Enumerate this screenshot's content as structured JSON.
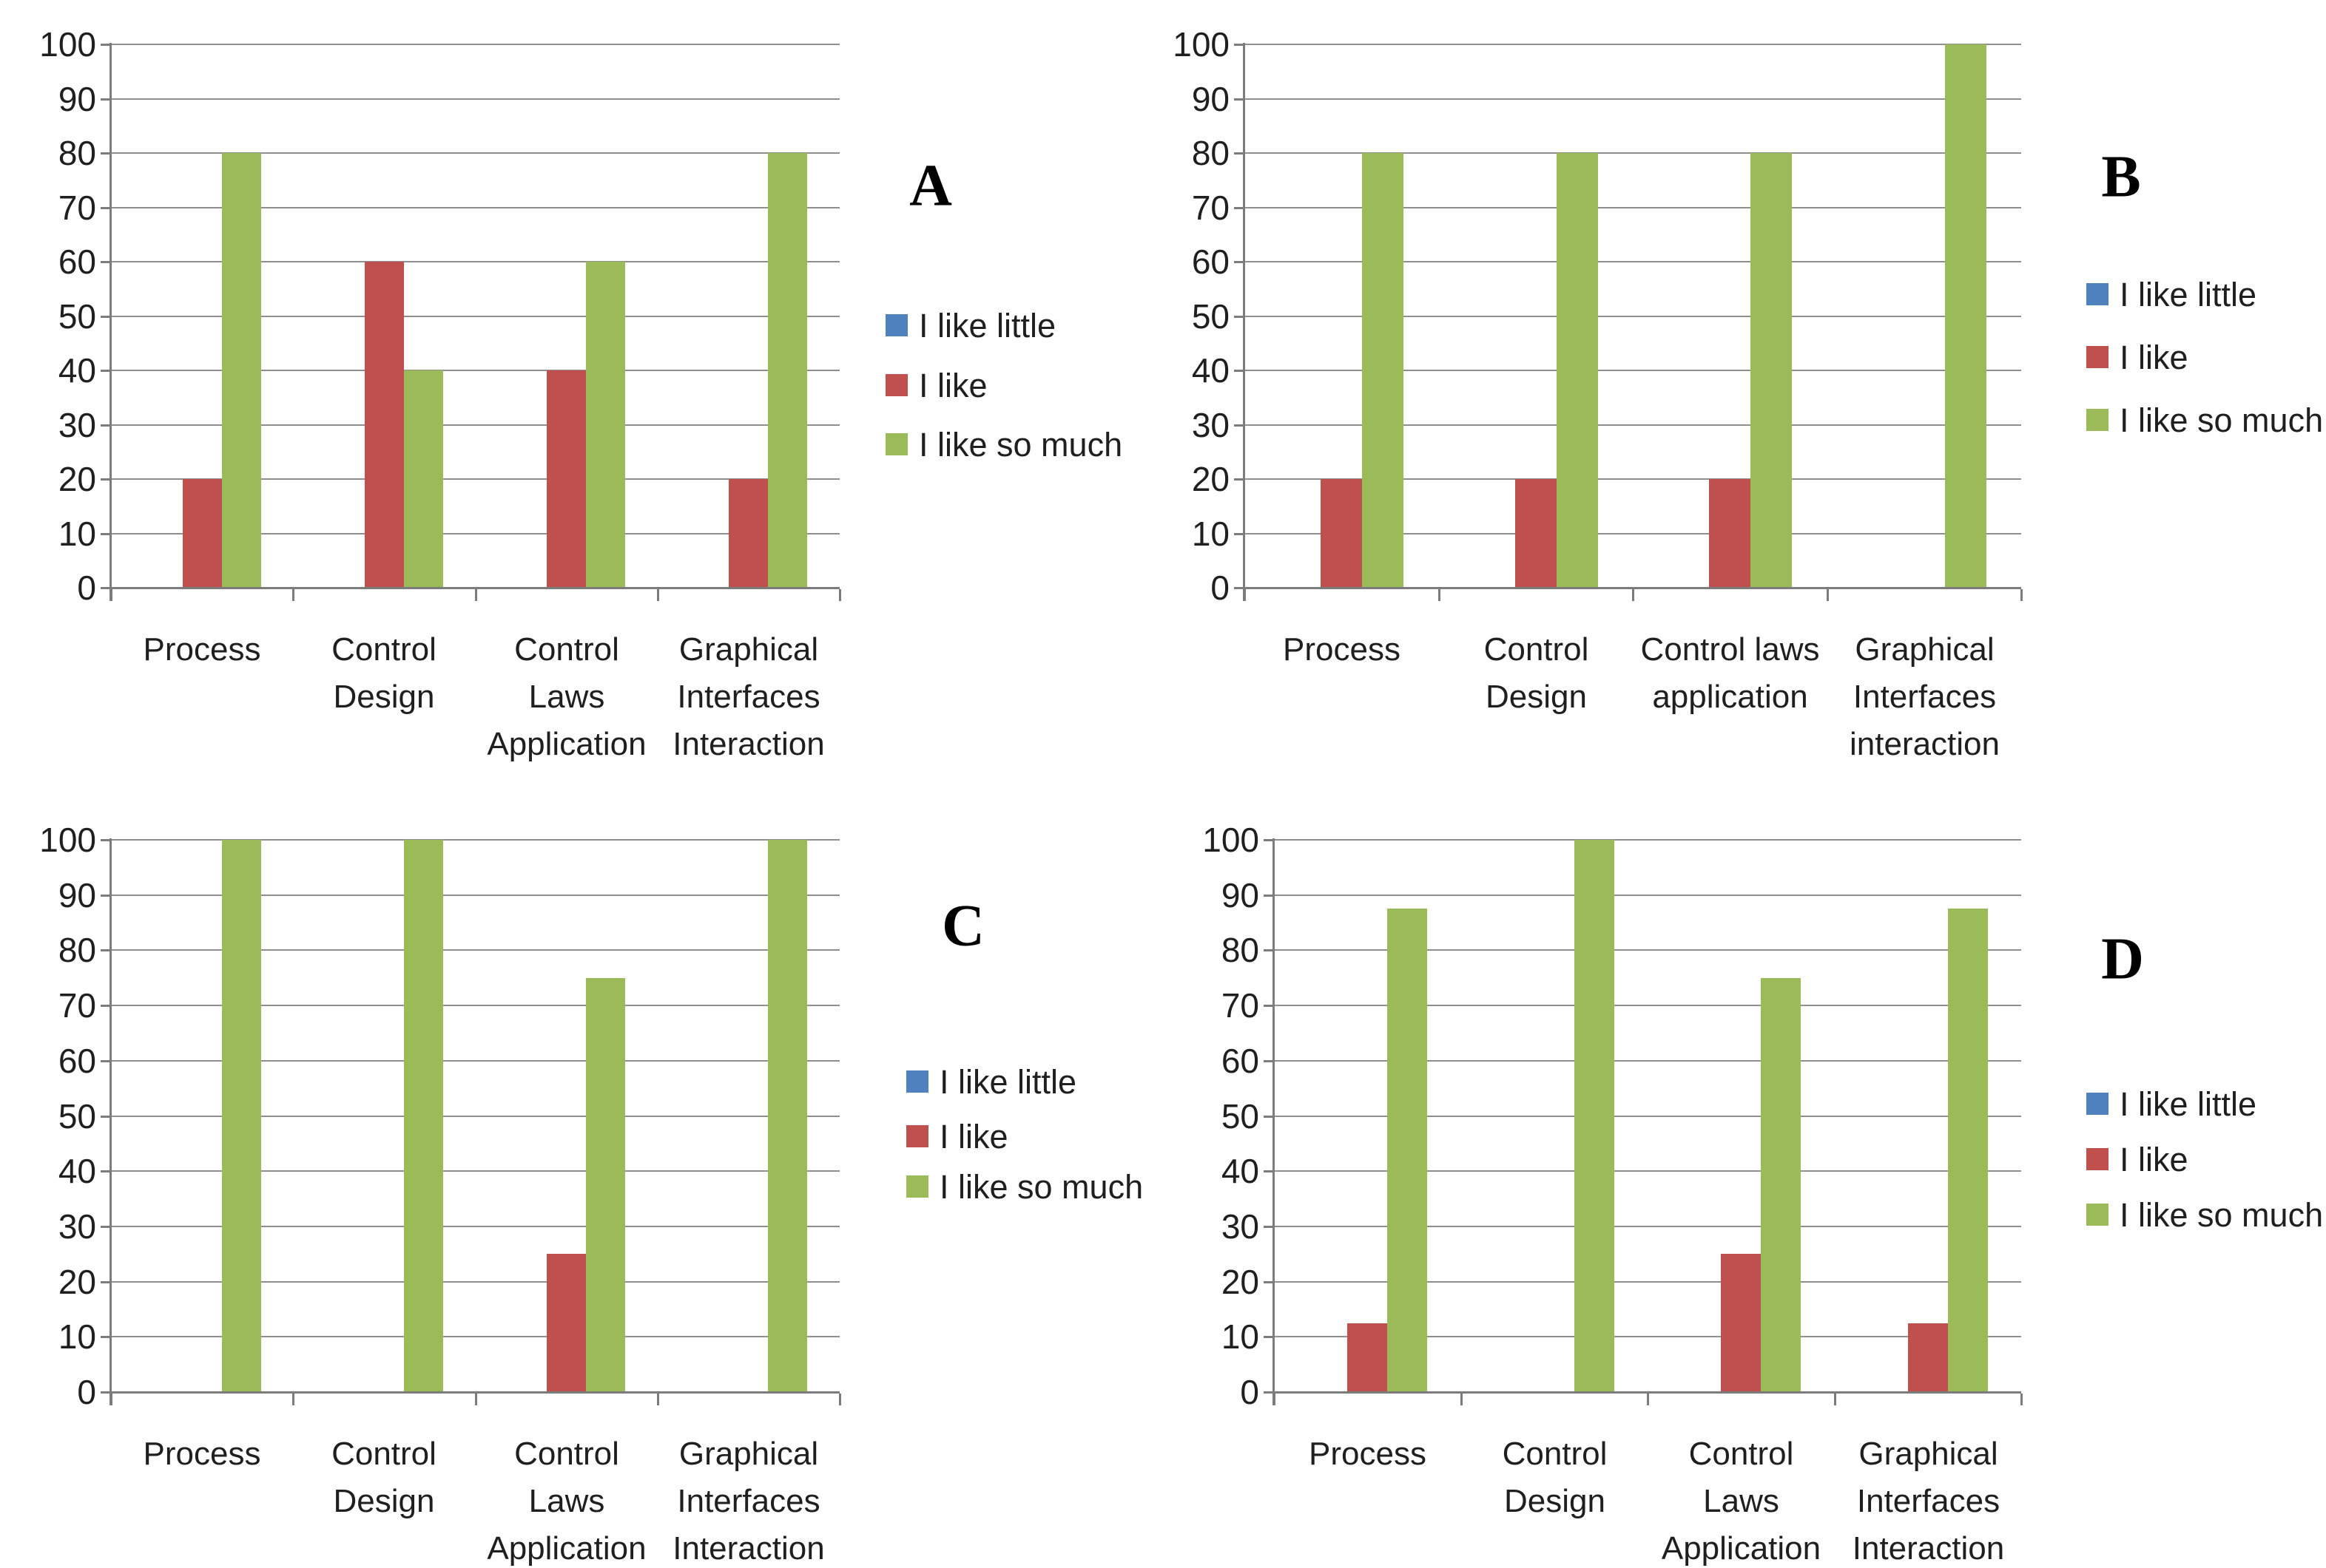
{
  "figure": {
    "description": "Four grouped bar chart panels (A, B, C, D) showing percentage of answers I like little / I like / I like so much for four course activities",
    "background": "#ffffff"
  },
  "colors": {
    "blue": "#4E81BD",
    "red": "#C0504D",
    "green": "#9BBB59",
    "grid": "#8f8f8f",
    "axis": "#7c7c7c",
    "text": "#1f1f1f"
  },
  "chart_data": [
    {
      "type": "bar",
      "panel_label": "A",
      "title": "",
      "xlabel": "",
      "ylabel": "",
      "ylim": [
        0,
        100
      ],
      "ytick_step": 10,
      "yticks": [
        "0",
        "10",
        "20",
        "30",
        "40",
        "50",
        "60",
        "70",
        "80",
        "90",
        "100"
      ],
      "grid": true,
      "legend_position": "right",
      "categories": [
        "Process",
        "Control Design",
        "Control Laws Application",
        "Graphical Interfaces Interaction"
      ],
      "category_lines": [
        [
          "Process"
        ],
        [
          "Control",
          "Design"
        ],
        [
          "Control",
          "Laws",
          "Application"
        ],
        [
          "Graphical",
          "Interfaces",
          "Interaction"
        ]
      ],
      "series": [
        {
          "name": "I like little",
          "color": "#4E81BD",
          "values": [
            0,
            0,
            0,
            0
          ]
        },
        {
          "name": "I like",
          "color": "#C0504D",
          "values": [
            20,
            60,
            40,
            20
          ]
        },
        {
          "name": "I like so much",
          "color": "#9BBB59",
          "values": [
            80,
            40,
            60,
            80
          ]
        }
      ]
    },
    {
      "type": "bar",
      "panel_label": "B",
      "title": "",
      "xlabel": "",
      "ylabel": "",
      "ylim": [
        0,
        100
      ],
      "ytick_step": 10,
      "yticks": [
        "0",
        "10",
        "20",
        "30",
        "40",
        "50",
        "60",
        "70",
        "80",
        "90",
        "100"
      ],
      "grid": true,
      "legend_position": "right",
      "categories": [
        "Process",
        "Control Design",
        "Control laws application",
        "Graphical Interfaces interaction"
      ],
      "category_lines": [
        [
          "Process"
        ],
        [
          "Control",
          "Design"
        ],
        [
          "Control laws",
          "application"
        ],
        [
          "Graphical",
          "Interfaces",
          "interaction"
        ]
      ],
      "series": [
        {
          "name": "I like little",
          "color": "#4E81BD",
          "values": [
            0,
            0,
            0,
            0
          ]
        },
        {
          "name": "I like",
          "color": "#C0504D",
          "values": [
            20,
            20,
            20,
            0
          ]
        },
        {
          "name": "I like so much",
          "color": "#9BBB59",
          "values": [
            80,
            80,
            80,
            100
          ]
        }
      ]
    },
    {
      "type": "bar",
      "panel_label": "C",
      "title": "",
      "xlabel": "",
      "ylabel": "",
      "ylim": [
        0,
        100
      ],
      "ytick_step": 10,
      "yticks": [
        "0",
        "10",
        "20",
        "30",
        "40",
        "50",
        "60",
        "70",
        "80",
        "90",
        "100"
      ],
      "grid": true,
      "legend_position": "right",
      "categories": [
        "Process",
        "Control Design",
        "Control Laws Application",
        "Graphical Interfaces Interaction"
      ],
      "category_lines": [
        [
          "Process"
        ],
        [
          "Control",
          "Design"
        ],
        [
          "Control",
          "Laws",
          "Application"
        ],
        [
          "Graphical",
          "Interfaces",
          "Interaction"
        ]
      ],
      "series": [
        {
          "name": "I like little",
          "color": "#4E81BD",
          "values": [
            0,
            0,
            0,
            0
          ]
        },
        {
          "name": "I like",
          "color": "#C0504D",
          "values": [
            0,
            0,
            25,
            0
          ]
        },
        {
          "name": "I like so much",
          "color": "#9BBB59",
          "values": [
            100,
            100,
            75,
            100
          ]
        }
      ]
    },
    {
      "type": "bar",
      "panel_label": "D",
      "title": "",
      "xlabel": "",
      "ylabel": "",
      "ylim": [
        0,
        100
      ],
      "ytick_step": 10,
      "yticks": [
        "0",
        "10",
        "20",
        "30",
        "40",
        "50",
        "60",
        "70",
        "80",
        "90",
        "100"
      ],
      "grid": true,
      "legend_position": "right",
      "categories": [
        "Process",
        "Control Design",
        "Control Laws Application",
        "Graphical Interfaces Interaction"
      ],
      "category_lines": [
        [
          "Process"
        ],
        [
          "Control",
          "Design"
        ],
        [
          "Control",
          "Laws",
          "Application"
        ],
        [
          "Graphical",
          "Interfaces",
          "Interaction"
        ]
      ],
      "series": [
        {
          "name": "I like little",
          "color": "#4E81BD",
          "values": [
            0,
            0,
            0,
            0
          ]
        },
        {
          "name": "I like",
          "color": "#C0504D",
          "values": [
            12.5,
            0,
            25,
            12.5
          ]
        },
        {
          "name": "I like so much",
          "color": "#9BBB59",
          "values": [
            87.5,
            100,
            75,
            87.5
          ]
        }
      ]
    }
  ]
}
